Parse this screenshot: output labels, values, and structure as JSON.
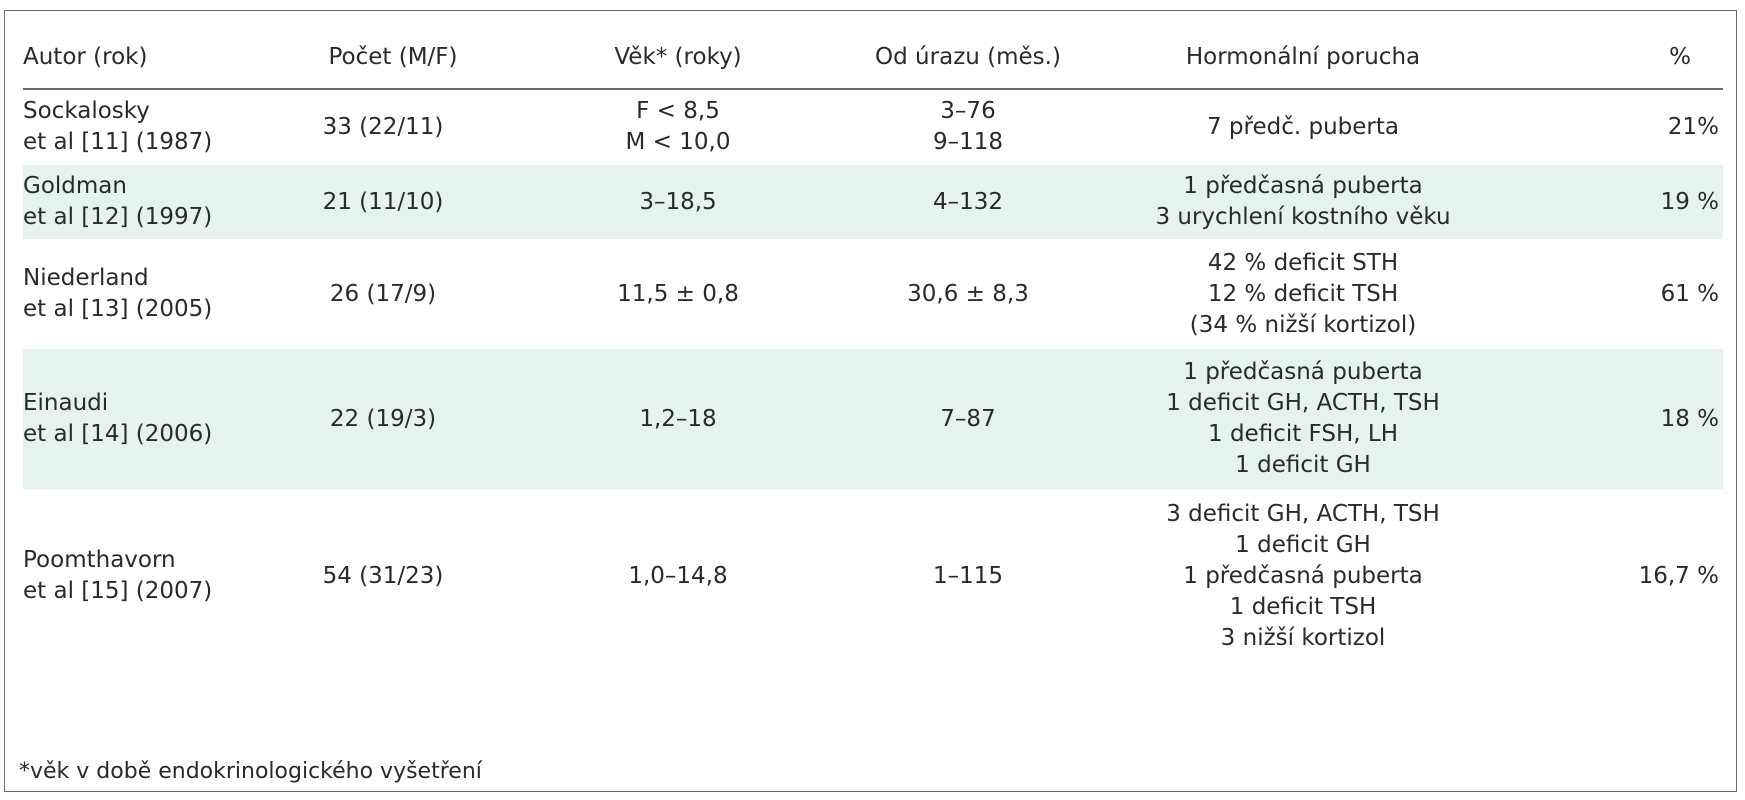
{
  "table": {
    "headers": [
      "Autor (rok)",
      "Počet (M/F)",
      "Věk* (roky)",
      "Od úrazu (měs.)",
      "Hormonální porucha",
      "%"
    ],
    "rows": [
      {
        "author": [
          "Sockalosky",
          "et al [11] (1987)"
        ],
        "count": [
          "33 (22/11)"
        ],
        "age": [
          "F < 8,5",
          "M < 10,0"
        ],
        "since_injury": [
          "3–76",
          "9–118"
        ],
        "disorder": [
          "7 předč. puberta"
        ],
        "percent": [
          "21%"
        ]
      },
      {
        "author": [
          "Goldman",
          "et al [12] (1997)"
        ],
        "count": [
          "21 (11/10)"
        ],
        "age": [
          "3–18,5"
        ],
        "since_injury": [
          "4–132"
        ],
        "disorder": [
          "1 předčasná puberta",
          "3 urychlení kostního věku"
        ],
        "percent": [
          "19 %"
        ]
      },
      {
        "author": [
          "Niederland",
          "et al [13] (2005)"
        ],
        "count": [
          "26 (17/9)"
        ],
        "age": [
          "11,5 ± 0,8"
        ],
        "since_injury": [
          "30,6 ± 8,3"
        ],
        "disorder": [
          "42 % deficit STH",
          "12 % deficit TSH",
          "(34 % nižší kortizol)"
        ],
        "percent": [
          "61 %"
        ]
      },
      {
        "author": [
          "Einaudi",
          "et al [14] (2006)"
        ],
        "count": [
          "22 (19/3)"
        ],
        "age": [
          "1,2–18"
        ],
        "since_injury": [
          "7–87"
        ],
        "disorder": [
          "1 předčasná puberta",
          "1 deficit GH, ACTH, TSH",
          "1 deficit FSH, LH",
          "1 deficit GH"
        ],
        "percent": [
          "18 %"
        ]
      },
      {
        "author": [
          "Poomthavorn",
          "et al [15] (2007)"
        ],
        "count": [
          "54 (31/23)"
        ],
        "age": [
          "1,0–14,8"
        ],
        "since_injury": [
          "1–115"
        ],
        "disorder": [
          "3 deficit GH, ACTH, TSH",
          "1 deficit GH",
          "1 předčasná puberta",
          "1 deficit TSH",
          "3 nižší kortizol"
        ],
        "percent": [
          "16,7 %"
        ]
      }
    ],
    "footnote": "*věk v době endokrinologického vyšetření"
  },
  "colors": {
    "row_shade": "#e6f2ef",
    "border": "#6b6b6b",
    "text": "#2a2a2a"
  }
}
